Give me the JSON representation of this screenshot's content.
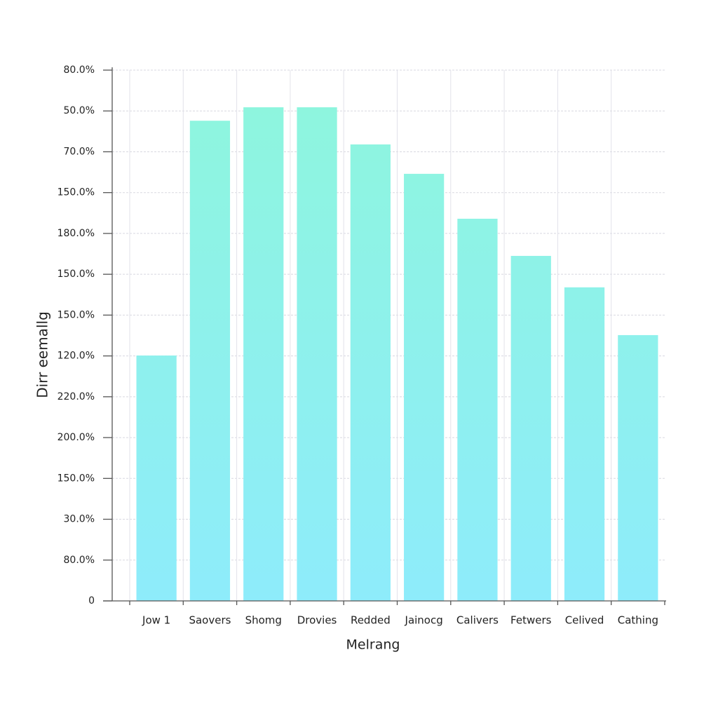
{
  "chart_data": {
    "type": "bar",
    "y_label": "Dirr eemallg",
    "x_label": "Melrang",
    "categories": [
      "Jow 1",
      "Saovers",
      "Shomg",
      "Drovies",
      "Redded",
      "Jainocg",
      "Calivers",
      "Fetwers",
      "Celived",
      "Cathing"
    ],
    "values": [
      6.01,
      11.76,
      12.09,
      12.09,
      11.18,
      10.46,
      9.36,
      8.45,
      7.68,
      6.51
    ],
    "color_bottom": "#8eecfb",
    "color_top": "#8ef6dc",
    "ylim": [
      0,
      13
    ],
    "yticks": [
      0,
      1,
      2,
      3,
      4,
      5,
      6,
      7,
      8,
      9,
      10,
      11,
      12,
      13
    ],
    "ytick_labels": [
      "0",
      "80.0%",
      "30.0%",
      "150.0%",
      "200.0%",
      "220.0%",
      "120.0%",
      "150.0%",
      "150.0%",
      "180.0%",
      "150.0%",
      "70.0%",
      "50.0%",
      "80.0%"
    ],
    "grid": true
  }
}
